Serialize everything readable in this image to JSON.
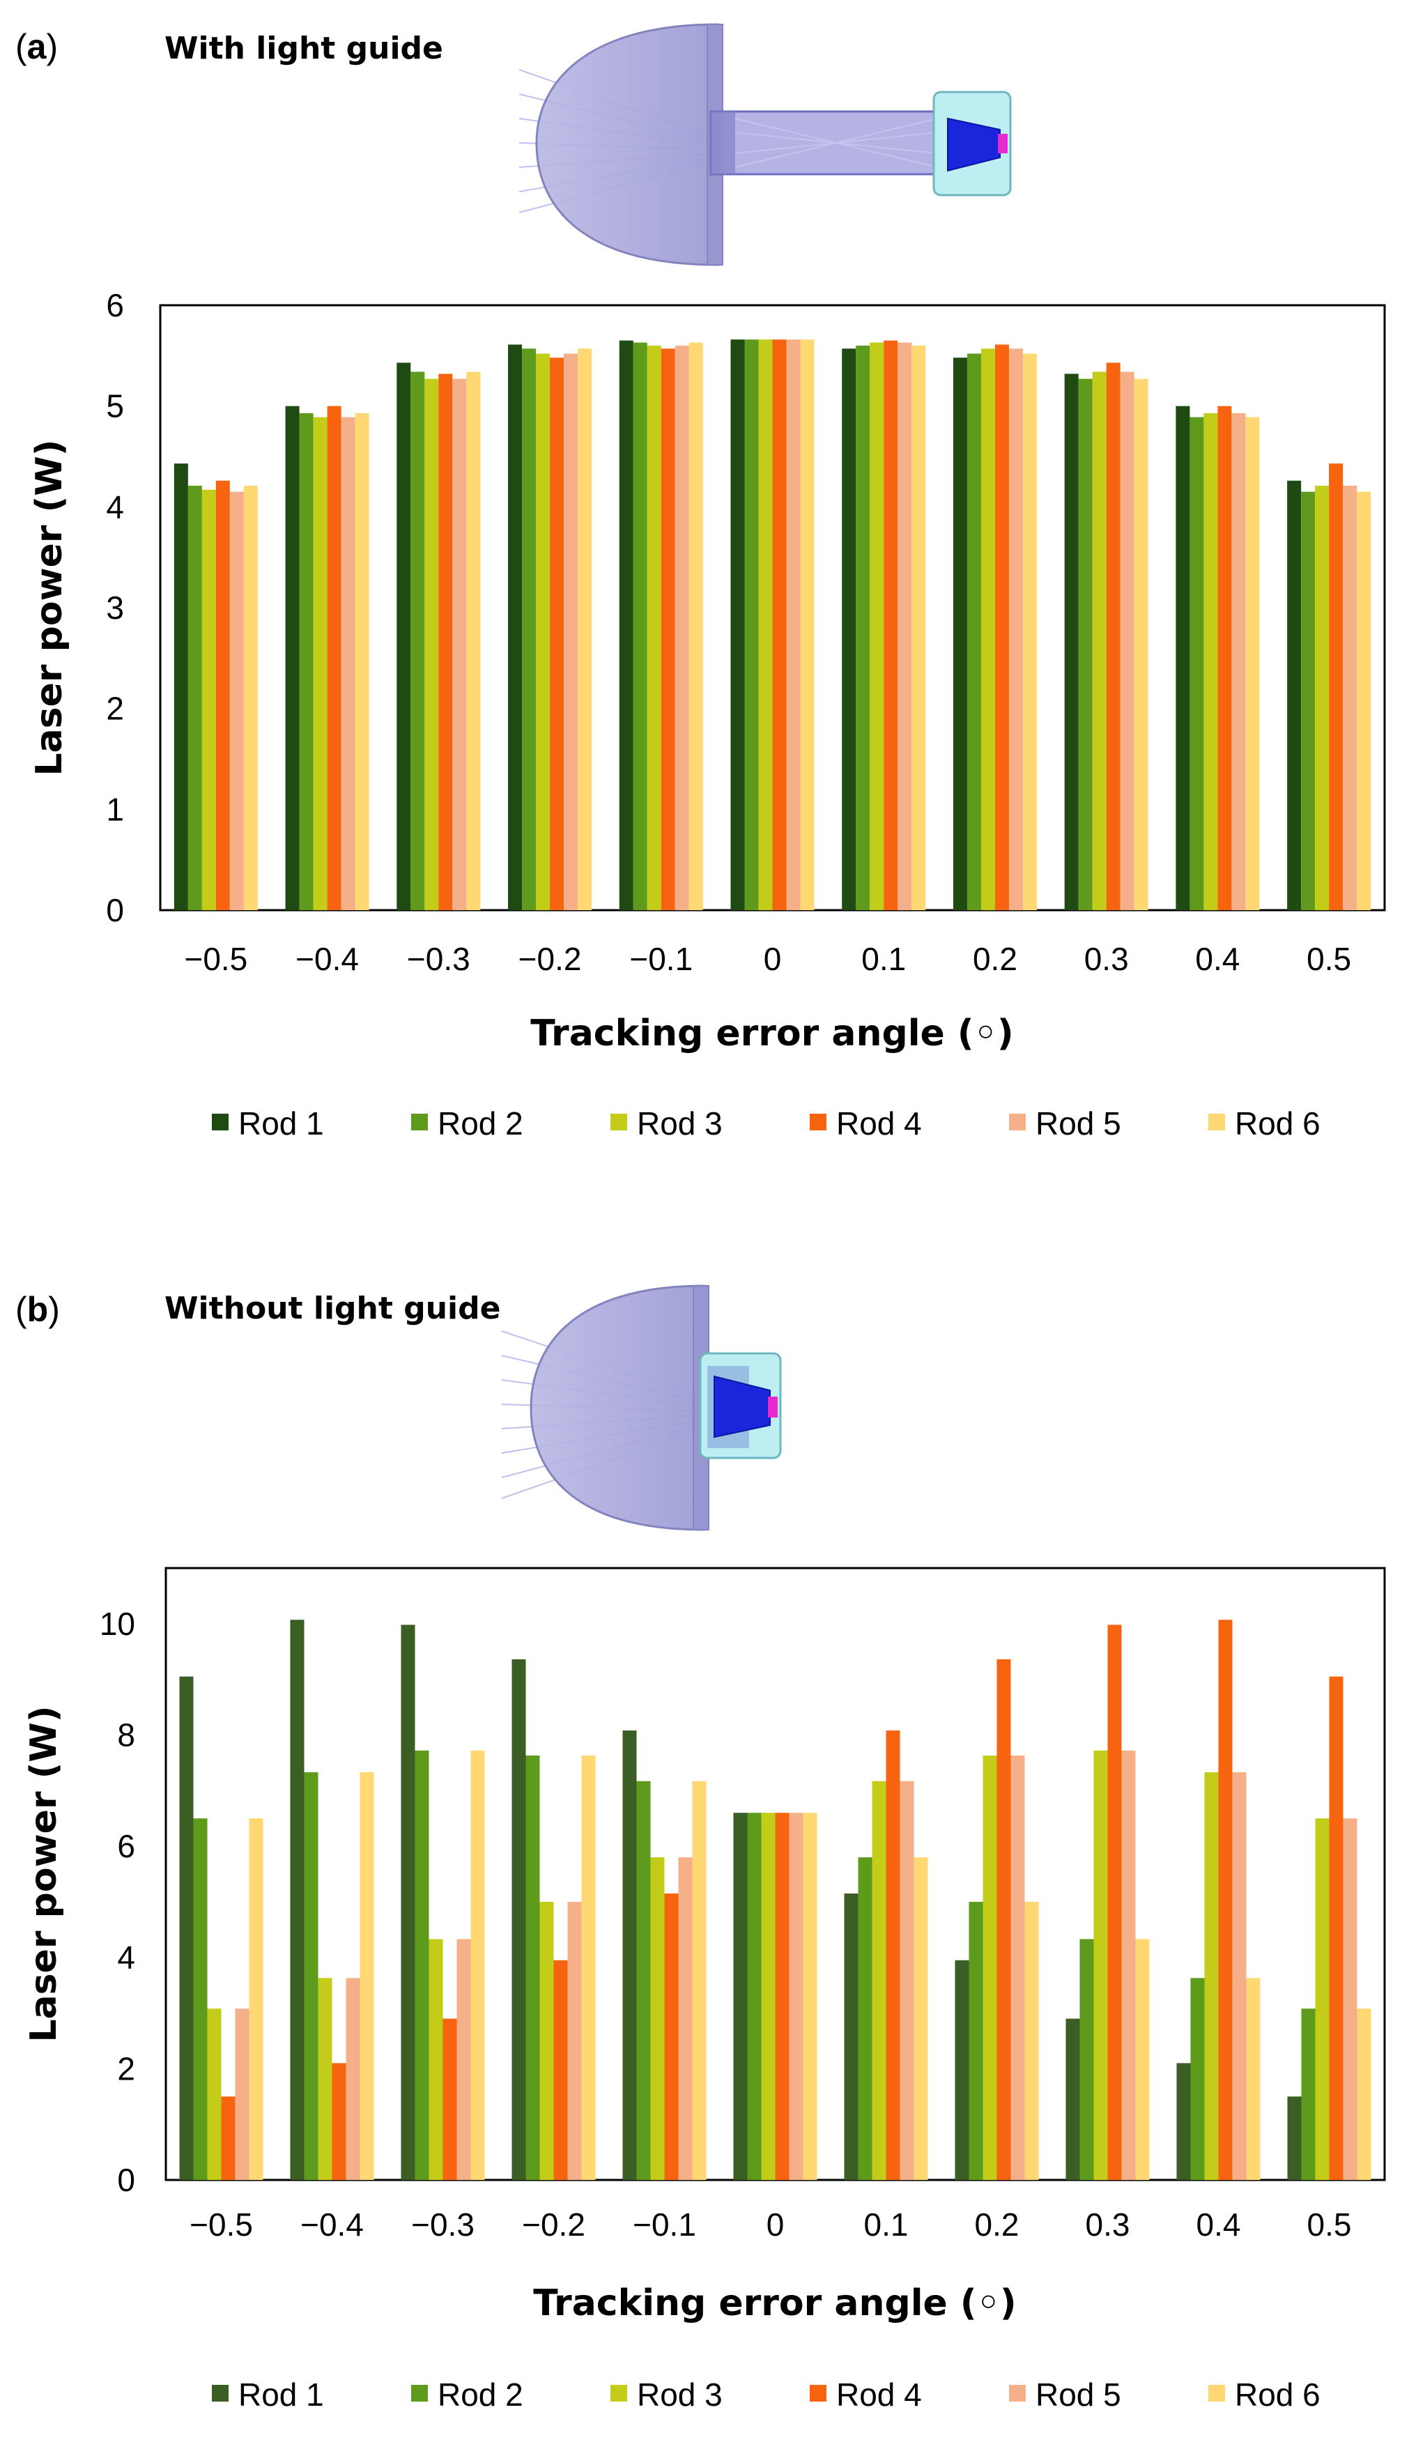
{
  "colors": {
    "rod1": "#1f4a12",
    "rod2": "#5e9a1c",
    "rod3": "#c4cc1a",
    "rod4": "#f76410",
    "rod5": "#f5b08a",
    "rod6": "#ffd873",
    "rod1_b": "#3a5e24",
    "lens": "#a9a8d8",
    "lens_edge": "#8c8bc4",
    "cone": "#1c2ad6",
    "holder": "#b9ecf0",
    "tip": "#e52ad0"
  },
  "chart_data": [
    {
      "type": "bar",
      "panel": "a",
      "diagram_caption": "With light guide",
      "title": "",
      "xlabel": "Tracking error angle (◦)",
      "ylabel": "Laser power (W)",
      "ylim": [
        0,
        6
      ],
      "yticks": [
        "0",
        "1",
        "2",
        "3",
        "4",
        "5",
        "6"
      ],
      "ytick_values": [
        0,
        1,
        2,
        3,
        4,
        5,
        6
      ],
      "categories": [
        "−0.5",
        "−0.4",
        "−0.3",
        "−0.2",
        "−0.1",
        "0",
        "0.1",
        "0.2",
        "0.3",
        "0.4",
        "0.5"
      ],
      "legend_position": "bottom",
      "series": [
        {
          "name": "Rod 1",
          "values": [
            4.43,
            5.0,
            5.43,
            5.61,
            5.65,
            5.66,
            5.57,
            5.48,
            5.32,
            5.0,
            4.26
          ]
        },
        {
          "name": "Rod 2",
          "values": [
            4.21,
            4.93,
            5.34,
            5.57,
            5.63,
            5.66,
            5.6,
            5.52,
            5.27,
            4.89,
            4.15
          ]
        },
        {
          "name": "Rod 3",
          "values": [
            4.17,
            4.89,
            5.27,
            5.52,
            5.6,
            5.66,
            5.63,
            5.57,
            5.34,
            4.93,
            4.21
          ]
        },
        {
          "name": "Rod 4",
          "values": [
            4.26,
            5.0,
            5.32,
            5.48,
            5.57,
            5.66,
            5.65,
            5.61,
            5.43,
            5.0,
            4.43
          ]
        },
        {
          "name": "Rod 5",
          "values": [
            4.15,
            4.89,
            5.27,
            5.52,
            5.6,
            5.66,
            5.63,
            5.57,
            5.34,
            4.93,
            4.21
          ]
        },
        {
          "name": "Rod 6",
          "values": [
            4.21,
            4.93,
            5.34,
            5.57,
            5.63,
            5.66,
            5.6,
            5.52,
            5.27,
            4.89,
            4.15
          ]
        }
      ]
    },
    {
      "type": "bar",
      "panel": "b",
      "diagram_caption": "Without light guide",
      "title": "",
      "xlabel": "Tracking error angle (◦)",
      "ylabel": "Laser power (W)",
      "ylim": [
        0,
        11
      ],
      "yticks": [
        "0",
        "2",
        "4",
        "6",
        "8",
        "10"
      ],
      "ytick_values": [
        0,
        2,
        4,
        6,
        8,
        10
      ],
      "categories": [
        "−0.5",
        "−0.4",
        "−0.3",
        "−0.2",
        "−0.1",
        "0",
        "0.1",
        "0.2",
        "0.3",
        "0.4",
        "0.5"
      ],
      "legend_position": "bottom",
      "series": [
        {
          "name": "Rod 1",
          "values": [
            9.05,
            10.07,
            9.98,
            9.36,
            8.08,
            6.6,
            5.15,
            3.95,
            2.9,
            2.1,
            1.5
          ]
        },
        {
          "name": "Rod 2",
          "values": [
            6.5,
            7.33,
            7.72,
            7.63,
            7.17,
            6.6,
            5.8,
            5.0,
            4.33,
            3.63,
            3.08
          ]
        },
        {
          "name": "Rod 3",
          "values": [
            3.08,
            3.63,
            4.33,
            5.0,
            5.8,
            6.6,
            7.17,
            7.63,
            7.72,
            7.33,
            6.5
          ]
        },
        {
          "name": "Rod 4",
          "values": [
            1.5,
            2.1,
            2.9,
            3.95,
            5.15,
            6.6,
            8.08,
            9.36,
            9.98,
            10.07,
            9.05
          ]
        },
        {
          "name": "Rod 5",
          "values": [
            3.08,
            3.63,
            4.33,
            5.0,
            5.8,
            6.6,
            7.17,
            7.63,
            7.72,
            7.33,
            6.5
          ]
        },
        {
          "name": "Rod 6",
          "values": [
            6.5,
            7.33,
            7.72,
            7.63,
            7.17,
            6.6,
            5.8,
            5.0,
            4.33,
            3.63,
            3.08
          ]
        }
      ]
    }
  ]
}
